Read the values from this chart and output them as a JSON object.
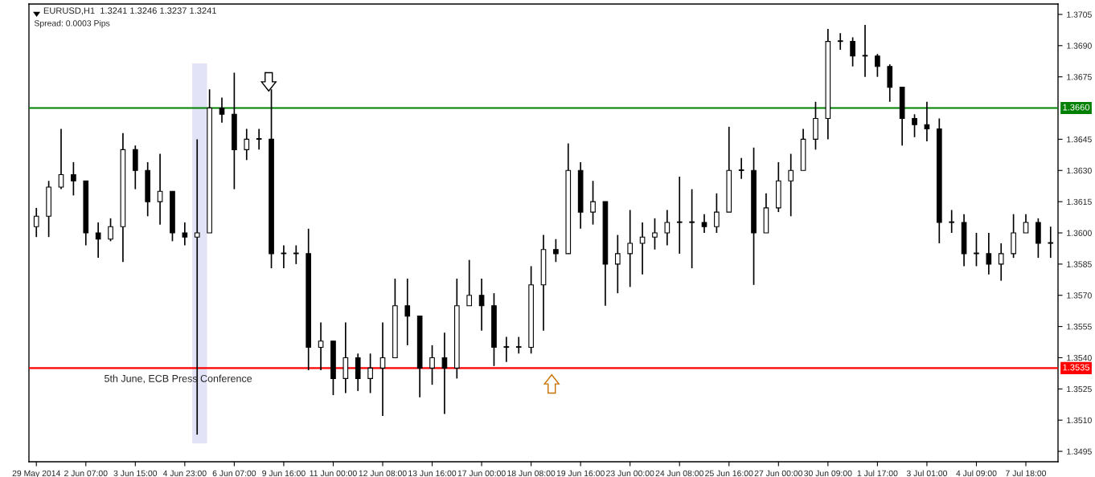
{
  "chart_data": {
    "type": "candlestick",
    "title": "EURUSD,H1  1.3241 1.3246 1.3237 1.3241",
    "subtitle": "Spread: 0.0003 Pips",
    "categories": [
      "29 May 2014",
      null,
      null,
      null,
      "2 Jun 07:00",
      null,
      null,
      null,
      "3 Jun 15:00",
      null,
      null,
      null,
      "4 Jun 23:00",
      null,
      null,
      null,
      "6 Jun 07:00",
      null,
      null,
      null,
      "9 Jun 16:00",
      null,
      null,
      null,
      "11 Jun 00:00",
      null,
      null,
      null,
      "12 Jun 08:00",
      null,
      null,
      null,
      "13 Jun 16:00",
      null,
      null,
      null,
      "17 Jun 00:00",
      null,
      null,
      null,
      "18 Jun 08:00",
      null,
      null,
      null,
      "19 Jun 16:00",
      null,
      null,
      null,
      "23 Jun 00:00",
      null,
      null,
      null,
      "24 Jun 08:00",
      null,
      null,
      null,
      "25 Jun 16:00",
      null,
      null,
      null,
      "27 Jun 00:00",
      null,
      null,
      null,
      "30 Jun 09:00",
      null,
      null,
      null,
      "1 Jul 17:00",
      null,
      null,
      null,
      "3 Jul 01:00",
      null,
      null,
      null,
      "4 Jul 09:00",
      null,
      null,
      null,
      "7 Jul 18:00",
      null,
      null
    ],
    "ohlc": [
      [
        1.3603,
        1.3612,
        1.3598,
        1.3608
      ],
      [
        1.3608,
        1.3625,
        1.3598,
        1.3622
      ],
      [
        1.3622,
        1.365,
        1.3621,
        1.3628
      ],
      [
        1.3628,
        1.3634,
        1.3618,
        1.3625
      ],
      [
        1.3625,
        1.3625,
        1.3594,
        1.36
      ],
      [
        1.36,
        1.3605,
        1.3588,
        1.3597
      ],
      [
        1.3597,
        1.3607,
        1.3596,
        1.3603
      ],
      [
        1.3603,
        1.3648,
        1.3586,
        1.364
      ],
      [
        1.364,
        1.3642,
        1.3621,
        1.363
      ],
      [
        1.363,
        1.3634,
        1.3608,
        1.3615
      ],
      [
        1.3615,
        1.3638,
        1.3604,
        1.362
      ],
      [
        1.362,
        1.362,
        1.3596,
        1.36
      ],
      [
        1.36,
        1.3605,
        1.3594,
        1.3598
      ],
      [
        1.3598,
        1.3645,
        1.3503,
        1.36
      ],
      [
        1.36,
        1.3669,
        1.36,
        1.366
      ],
      [
        1.366,
        1.3665,
        1.3653,
        1.3657
      ],
      [
        1.3657,
        1.3677,
        1.3621,
        1.364
      ],
      [
        1.364,
        1.365,
        1.3635,
        1.3645
      ],
      [
        1.3645,
        1.365,
        1.364,
        1.3645
      ],
      [
        1.3645,
        1.3669,
        1.3583,
        1.359
      ],
      [
        1.359,
        1.3594,
        1.3583,
        1.359
      ],
      [
        1.359,
        1.3594,
        1.3585,
        1.359
      ],
      [
        1.359,
        1.3602,
        1.3534,
        1.3545
      ],
      [
        1.3545,
        1.3557,
        1.3534,
        1.3548
      ],
      [
        1.3548,
        1.3548,
        1.3522,
        1.353
      ],
      [
        1.353,
        1.3557,
        1.3523,
        1.354
      ],
      [
        1.354,
        1.3542,
        1.3524,
        1.353
      ],
      [
        1.353,
        1.3542,
        1.3523,
        1.3535
      ],
      [
        1.3535,
        1.3557,
        1.3512,
        1.354
      ],
      [
        1.354,
        1.3578,
        1.354,
        1.3565
      ],
      [
        1.3565,
        1.3578,
        1.3546,
        1.356
      ],
      [
        1.356,
        1.356,
        1.3521,
        1.3535
      ],
      [
        1.3535,
        1.3546,
        1.3527,
        1.354
      ],
      [
        1.354,
        1.3552,
        1.3513,
        1.3535
      ],
      [
        1.3535,
        1.3578,
        1.353,
        1.3565
      ],
      [
        1.3565,
        1.3587,
        1.3565,
        1.357
      ],
      [
        1.357,
        1.3578,
        1.3553,
        1.3565
      ],
      [
        1.3565,
        1.3571,
        1.3536,
        1.3545
      ],
      [
        1.3545,
        1.355,
        1.3538,
        1.3545
      ],
      [
        1.3545,
        1.355,
        1.3542,
        1.3545
      ],
      [
        1.3545,
        1.3584,
        1.3542,
        1.3575
      ],
      [
        1.3575,
        1.3599,
        1.3553,
        1.3592
      ],
      [
        1.3592,
        1.3597,
        1.3586,
        1.359
      ],
      [
        1.359,
        1.3643,
        1.359,
        1.363
      ],
      [
        1.363,
        1.3634,
        1.3602,
        1.361
      ],
      [
        1.361,
        1.3625,
        1.3604,
        1.3615
      ],
      [
        1.3615,
        1.3615,
        1.3565,
        1.3585
      ],
      [
        1.3585,
        1.3599,
        1.3571,
        1.359
      ],
      [
        1.359,
        1.3611,
        1.3574,
        1.3595
      ],
      [
        1.3595,
        1.3605,
        1.358,
        1.3598
      ],
      [
        1.3598,
        1.3607,
        1.3592,
        1.36
      ],
      [
        1.36,
        1.3611,
        1.3594,
        1.3605
      ],
      [
        1.3605,
        1.3627,
        1.359,
        1.3605
      ],
      [
        1.3605,
        1.3621,
        1.3583,
        1.3605
      ],
      [
        1.3605,
        1.3609,
        1.36,
        1.3603
      ],
      [
        1.3603,
        1.3619,
        1.36,
        1.361
      ],
      [
        1.361,
        1.3651,
        1.361,
        1.363
      ],
      [
        1.363,
        1.3636,
        1.3626,
        1.363
      ],
      [
        1.363,
        1.3641,
        1.3575,
        1.36
      ],
      [
        1.36,
        1.3619,
        1.36,
        1.3612
      ],
      [
        1.3612,
        1.3634,
        1.361,
        1.3625
      ],
      [
        1.3625,
        1.3638,
        1.3608,
        1.363
      ],
      [
        1.363,
        1.365,
        1.363,
        1.3645
      ],
      [
        1.3645,
        1.3663,
        1.364,
        1.3655
      ],
      [
        1.3655,
        1.3698,
        1.3645,
        1.3692
      ],
      [
        1.3692,
        1.3696,
        1.3688,
        1.3692
      ],
      [
        1.3692,
        1.3694,
        1.368,
        1.3685
      ],
      [
        1.3685,
        1.37,
        1.3675,
        1.3685
      ],
      [
        1.3685,
        1.3686,
        1.3675,
        1.368
      ],
      [
        1.368,
        1.3681,
        1.3663,
        1.367
      ],
      [
        1.367,
        1.367,
        1.3642,
        1.3655
      ],
      [
        1.3655,
        1.3657,
        1.3646,
        1.3652
      ],
      [
        1.3652,
        1.3663,
        1.3644,
        1.365
      ],
      [
        1.365,
        1.3655,
        1.3595,
        1.3605
      ],
      [
        1.3605,
        1.3611,
        1.36,
        1.3605
      ],
      [
        1.3605,
        1.3609,
        1.3584,
        1.359
      ],
      [
        1.359,
        1.36,
        1.3584,
        1.359
      ],
      [
        1.359,
        1.36,
        1.358,
        1.3585
      ],
      [
        1.3585,
        1.3595,
        1.3577,
        1.359
      ],
      [
        1.359,
        1.3609,
        1.3588,
        1.36
      ],
      [
        1.36,
        1.3609,
        1.36,
        1.3605
      ],
      [
        1.3605,
        1.3607,
        1.3588,
        1.3595
      ],
      [
        1.3595,
        1.3603,
        1.3588,
        1.3595
      ]
    ],
    "color": "#000000",
    "ylim": [
      1.349,
      1.371
    ],
    "yticks": [
      {
        "value": 1.3495,
        "label": "1.3495"
      },
      {
        "value": 1.351,
        "label": "1.3510"
      },
      {
        "value": 1.3525,
        "label": "1.3525"
      },
      {
        "value": 1.354,
        "label": "1.3540"
      },
      {
        "value": 1.3555,
        "label": "1.3555"
      },
      {
        "value": 1.357,
        "label": "1.3570"
      },
      {
        "value": 1.3585,
        "label": "1.3585"
      },
      {
        "value": 1.36,
        "label": "1.3600"
      },
      {
        "value": 1.3615,
        "label": "1.3615"
      },
      {
        "value": 1.363,
        "label": "1.3630"
      },
      {
        "value": 1.3645,
        "label": "1.3645"
      },
      {
        "value": 1.3675,
        "label": "1.3675"
      },
      {
        "value": 1.369,
        "label": "1.3690"
      },
      {
        "value": 1.3705,
        "label": "1.3705"
      }
    ],
    "ref_lines": [
      {
        "axis": "y",
        "value": 1.366,
        "label": "1.3660",
        "color": "#008000"
      },
      {
        "axis": "y",
        "value": 1.3535,
        "label": "1.3535",
        "color": "#ff0000"
      }
    ],
    "annotations": [
      "5th June, ECB Press Conference"
    ],
    "grid": false,
    "legend": false
  }
}
